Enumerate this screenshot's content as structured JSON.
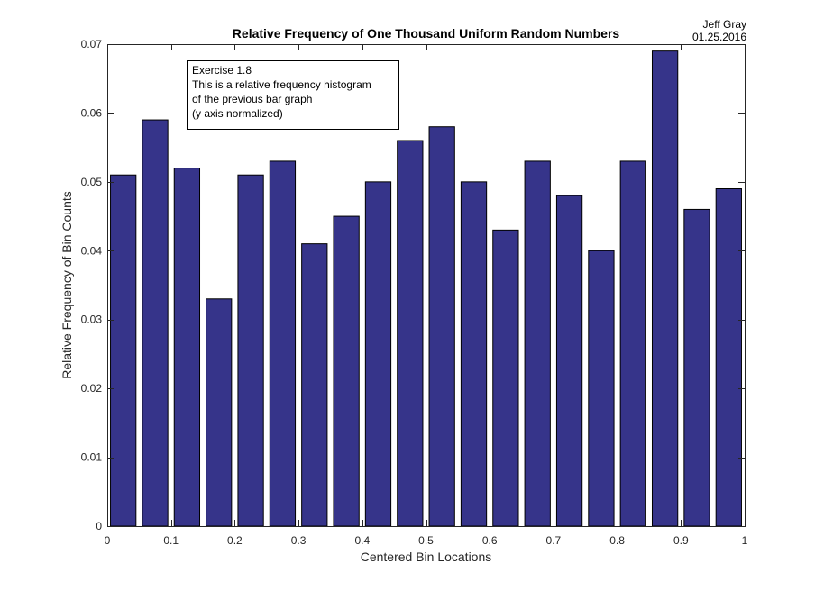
{
  "chart_data": {
    "type": "bar",
    "title": "Relative Frequency of One Thousand Uniform Random Numbers",
    "xlabel": "Centered Bin Locations",
    "ylabel": "Relative Frequency of Bin Counts",
    "xlim": [
      0,
      1
    ],
    "ylim": [
      0,
      0.07
    ],
    "x_ticks": [
      "0",
      "0.1",
      "0.2",
      "0.3",
      "0.4",
      "0.5",
      "0.6",
      "0.7",
      "0.8",
      "0.9",
      "1"
    ],
    "y_ticks": [
      "0",
      "0.01",
      "0.02",
      "0.03",
      "0.04",
      "0.05",
      "0.06",
      "0.07"
    ],
    "grid": false,
    "bar_color": "#36348a",
    "x": [
      0.025,
      0.075,
      0.125,
      0.175,
      0.225,
      0.275,
      0.325,
      0.375,
      0.425,
      0.475,
      0.525,
      0.575,
      0.625,
      0.675,
      0.725,
      0.775,
      0.825,
      0.875,
      0.925,
      0.975
    ],
    "values": [
      0.051,
      0.059,
      0.052,
      0.033,
      0.051,
      0.053,
      0.041,
      0.045,
      0.05,
      0.056,
      0.058,
      0.05,
      0.043,
      0.053,
      0.048,
      0.04,
      0.053,
      0.069,
      0.046,
      0.049
    ]
  },
  "corner_note": {
    "author": "Jeff Gray",
    "date": "01.25.2016"
  },
  "annotation": {
    "lines": [
      "Exercise 1.8",
      "This is a relative frequency histogram",
      "of the previous bar graph",
      "(y axis normalized)"
    ]
  }
}
